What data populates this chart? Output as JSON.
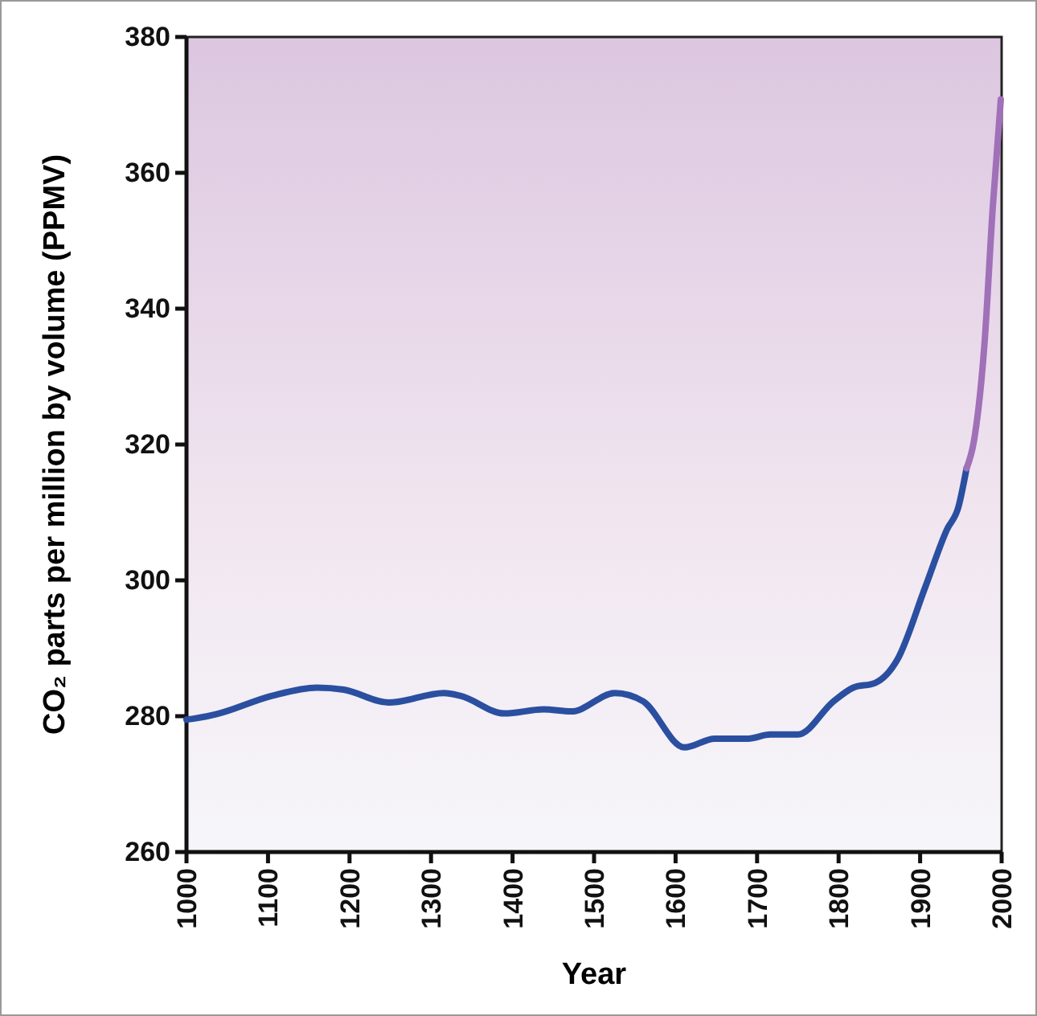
{
  "chart_data": {
    "type": "line",
    "xlabel": "Year",
    "ylabel": "CO₂ parts per million by volume (PPMV)",
    "xlim": [
      1000,
      2000
    ],
    "xticks": [
      1000,
      1100,
      1200,
      1300,
      1400,
      1500,
      1600,
      1700,
      1800,
      1900,
      2000
    ],
    "ylim": [
      260,
      380
    ],
    "yticks": [
      260,
      280,
      300,
      320,
      340,
      360,
      380
    ],
    "grid": false,
    "series": [
      {
        "color": "#2b4fa0",
        "x": [
          1000,
          1007,
          1037,
          1105,
          1160,
          1193,
          1248,
          1316,
          1336,
          1390,
          1438,
          1472,
          1526,
          1560,
          1611,
          1648,
          1689,
          1716,
          1750,
          1794,
          1818,
          1845,
          1872,
          1906,
          1933,
          1947,
          1957
        ],
        "values": [
          279.5,
          279.6,
          280.3,
          283.0,
          284.2,
          283.9,
          282.0,
          283.4,
          283.0,
          280.4,
          281.0,
          280.7,
          283.4,
          282.2,
          275.4,
          276.7,
          276.7,
          277.3,
          277.3,
          282.2,
          284.2,
          284.9,
          288.3,
          298.9,
          307.5,
          310.8,
          316.5
        ]
      },
      {
        "color": "#a070b8",
        "x": [
          1957,
          1966,
          1979,
          1989,
          1999
        ],
        "values": [
          316.5,
          320.5,
          334.9,
          354.7,
          370.8
        ]
      }
    ]
  }
}
